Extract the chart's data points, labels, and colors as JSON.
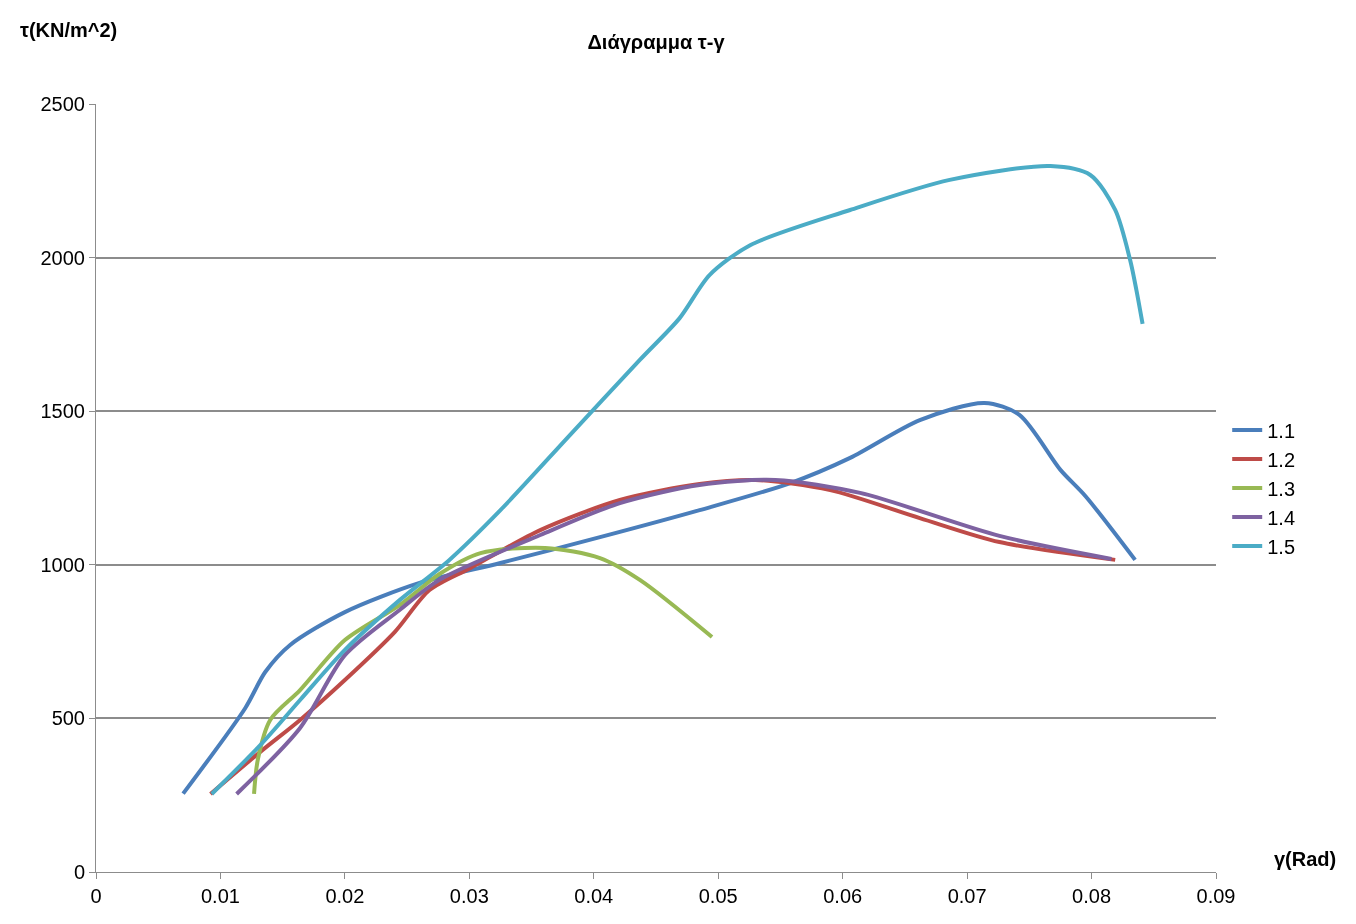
{
  "chart_data": {
    "type": "line",
    "title": "Διάγραμμα τ-γ",
    "xlabel": "γ(Rad)",
    "ylabel": "τ(KN/m^2)",
    "xlim": [
      0,
      0.09
    ],
    "xticks": [
      0,
      0.01,
      0.02,
      0.03,
      0.04,
      0.05,
      0.06,
      0.07,
      0.08,
      0.09
    ],
    "ylim": [
      0,
      2500
    ],
    "yticks": [
      0,
      500,
      1000,
      1500,
      2000,
      2500
    ],
    "grid": "y",
    "legend": "right",
    "marker": "none",
    "line_style": "solid",
    "series": [
      {
        "name": "1.1",
        "color": "#4a7ebb",
        "x": [
          0.007,
          0.012,
          0.0136,
          0.0156,
          0.02,
          0.026,
          0.0325,
          0.0405,
          0.0485,
          0.0558,
          0.0606,
          0.0662,
          0.0714,
          0.0742,
          0.0775,
          0.0795,
          0.0835
        ],
        "values": [
          255,
          534,
          651,
          739,
          846,
          941,
          1006,
          1090,
          1178,
          1266,
          1348,
          1471,
          1527,
          1488,
          1309,
          1224,
          1016
        ]
      },
      {
        "name": "1.2",
        "color": "#be4b48",
        "x": [
          0.0092,
          0.0132,
          0.0164,
          0.02,
          0.024,
          0.0268,
          0.0301,
          0.0357,
          0.0421,
          0.0485,
          0.053,
          0.059,
          0.0662,
          0.0726,
          0.0819
        ],
        "values": [
          254,
          391,
          495,
          625,
          781,
          918,
          990,
          1113,
          1211,
          1263,
          1276,
          1243,
          1152,
          1074,
          1016
        ]
      },
      {
        "name": "1.3",
        "color": "#98b954",
        "x": [
          0.0127,
          0.013,
          0.014,
          0.0164,
          0.02,
          0.0244,
          0.0276,
          0.0309,
          0.0361,
          0.0405,
          0.0437,
          0.0495
        ],
        "values": [
          254,
          365,
          495,
          592,
          755,
          869,
          970,
          1038,
          1055,
          1022,
          951,
          765
        ]
      },
      {
        "name": "1.4",
        "color": "#7e62a1",
        "x": [
          0.0113,
          0.0164,
          0.02,
          0.0244,
          0.0276,
          0.0357,
          0.0421,
          0.0485,
          0.0546,
          0.0614,
          0.0726,
          0.0816
        ],
        "values": [
          254,
          469,
          706,
          853,
          951,
          1097,
          1201,
          1260,
          1276,
          1234,
          1094,
          1019
        ]
      },
      {
        "name": "1.5",
        "color": "#4bacc6",
        "x": [
          0.0093,
          0.0132,
          0.0164,
          0.02,
          0.0244,
          0.0284,
          0.0325,
          0.0381,
          0.0437,
          0.0469,
          0.0493,
          0.0526,
          0.0606,
          0.0686,
          0.0767,
          0.0799,
          0.0819,
          0.0831,
          0.0836,
          0.0841
        ],
        "values": [
          254,
          413,
          560,
          723,
          885,
          1016,
          1178,
          1423,
          1667,
          1803,
          1943,
          2041,
          2155,
          2253,
          2298,
          2269,
          2155,
          1992,
          1895,
          1784
        ]
      }
    ]
  }
}
